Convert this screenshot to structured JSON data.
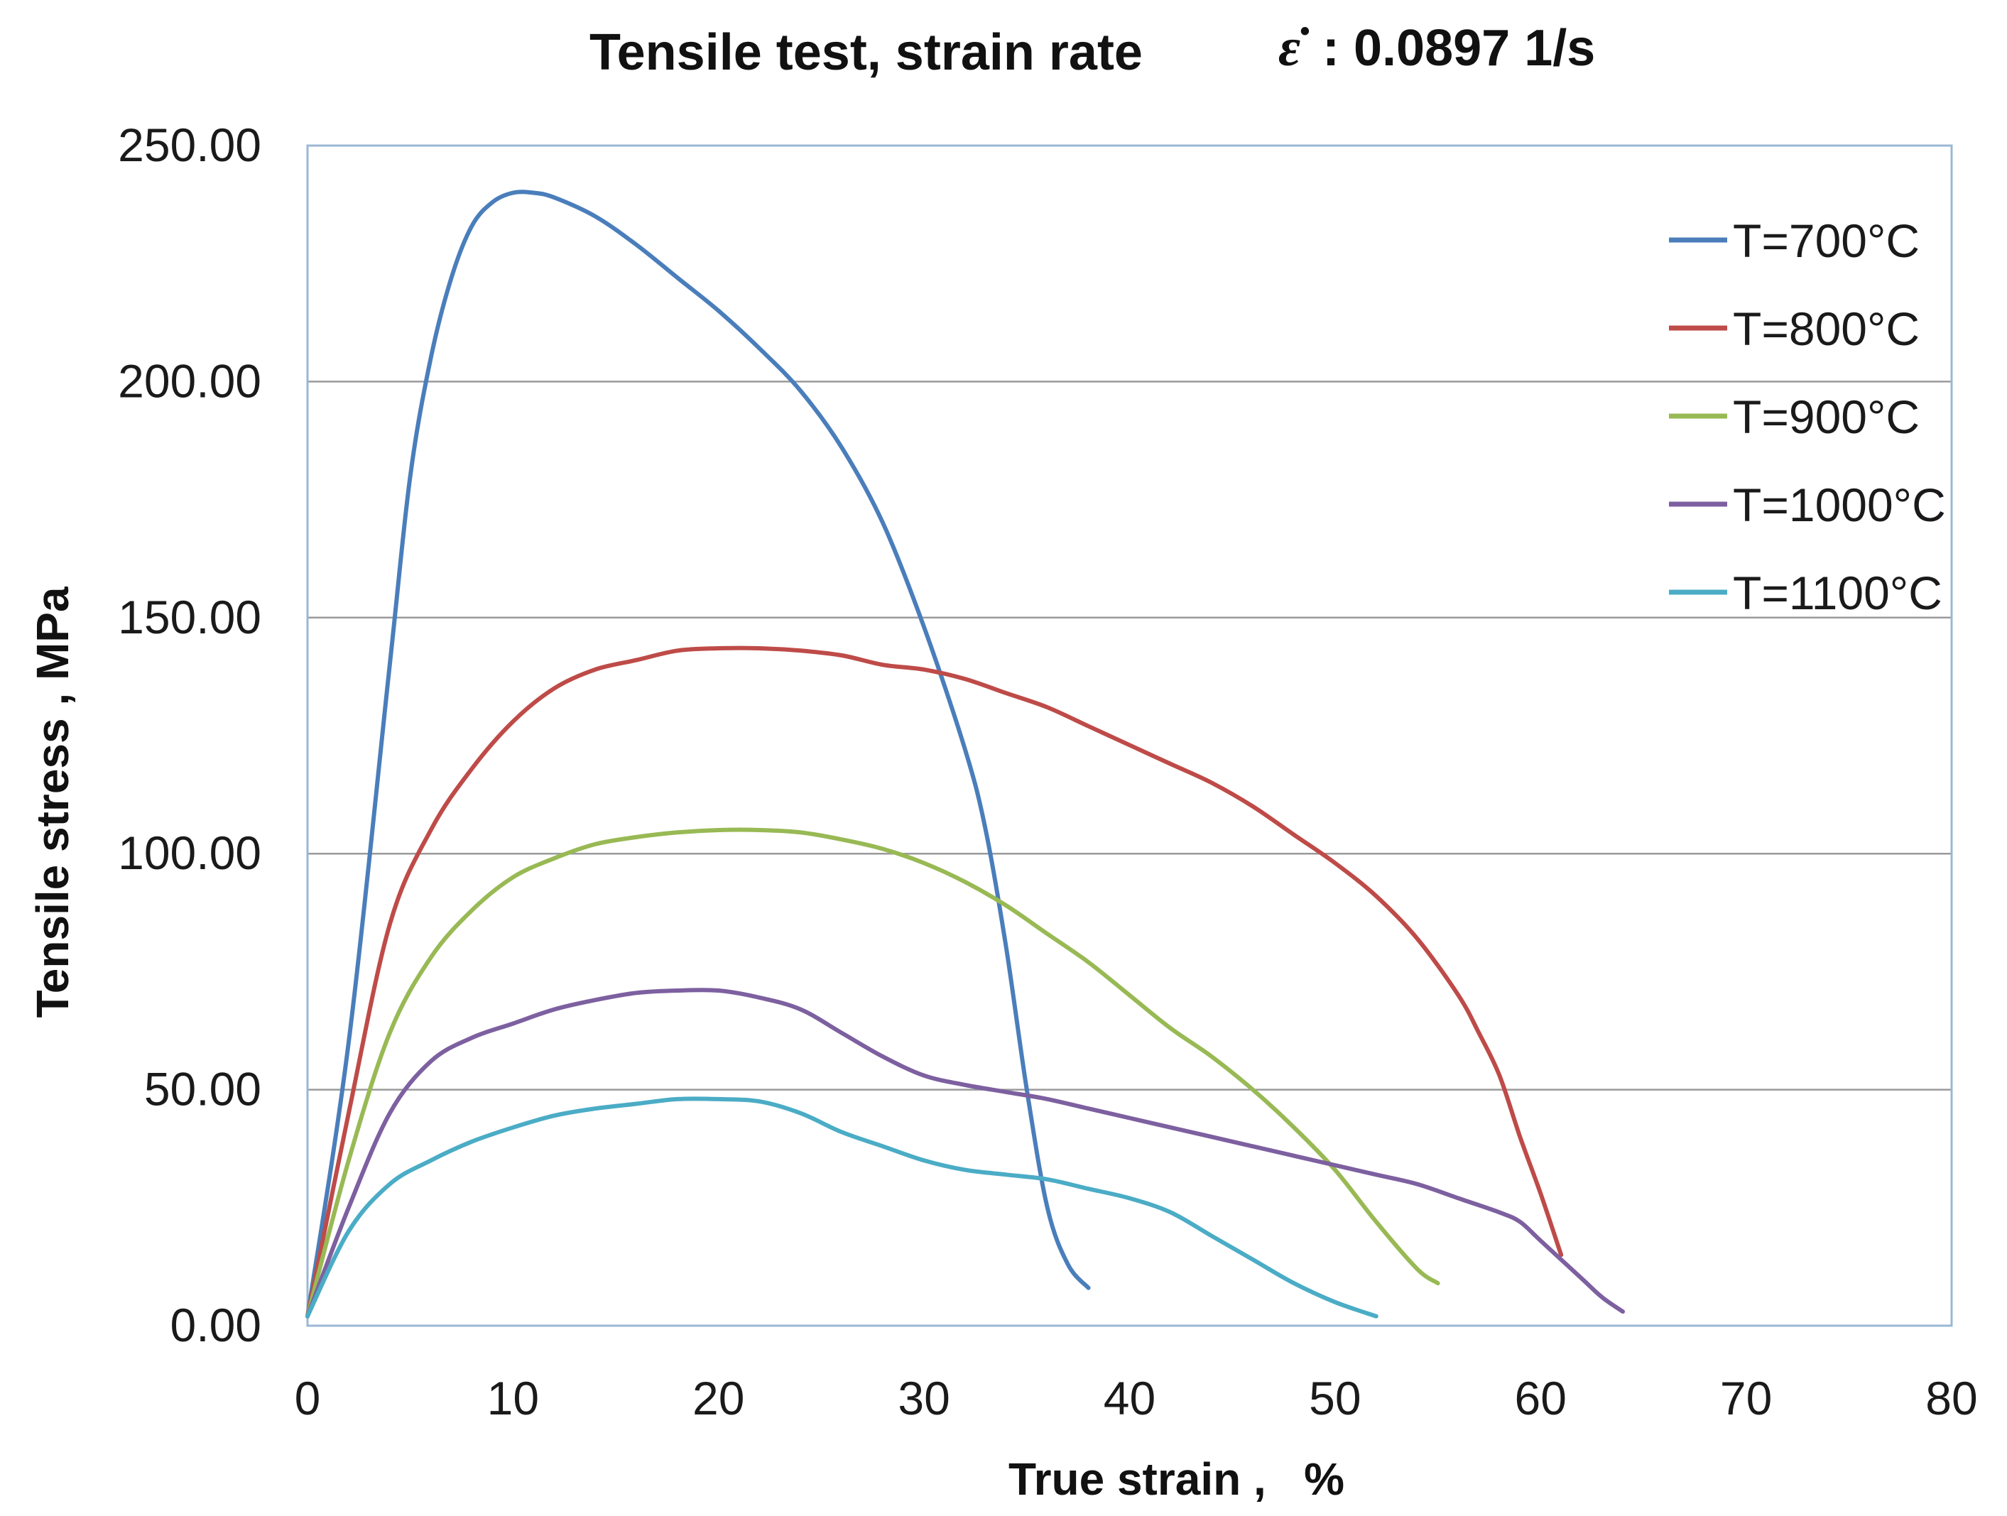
{
  "chart_data": {
    "type": "line",
    "title": "Tensile test, strain rate",
    "title_symbol": "ε̇",
    "title_rate": ": 0.0897 1/s",
    "xlabel": "True strain ,   %",
    "ylabel": "Tensile stress , MPa",
    "xlim": [
      0,
      80
    ],
    "ylim": [
      0,
      250
    ],
    "x_ticks": [
      0,
      10,
      20,
      30,
      40,
      50,
      60,
      70,
      80
    ],
    "x_tick_labels": [
      "0",
      "10",
      "20",
      "30",
      "40",
      "50",
      "60",
      "70",
      "80"
    ],
    "y_ticks": [
      0,
      50,
      100,
      150,
      200,
      250
    ],
    "y_tick_labels": [
      "0.00",
      "50.00",
      "100.00",
      "150.00",
      "200.00",
      "250.00"
    ],
    "grid": "horizontal",
    "legend_position": "top-right",
    "series": [
      {
        "name": "T=700°C",
        "color": "#4a7ebb",
        "points": [
          [
            0,
            2
          ],
          [
            2,
            60
          ],
          [
            4,
            140
          ],
          [
            5,
            180
          ],
          [
            6,
            205
          ],
          [
            7,
            222
          ],
          [
            8,
            233
          ],
          [
            9,
            238
          ],
          [
            10,
            240
          ],
          [
            11,
            240
          ],
          [
            12,
            239
          ],
          [
            14,
            235
          ],
          [
            16,
            229
          ],
          [
            18,
            222
          ],
          [
            20,
            215
          ],
          [
            22,
            207
          ],
          [
            24,
            198
          ],
          [
            26,
            186
          ],
          [
            28,
            170
          ],
          [
            30,
            148
          ],
          [
            32,
            122
          ],
          [
            33,
            105
          ],
          [
            34,
            80
          ],
          [
            35,
            50
          ],
          [
            36,
            25
          ],
          [
            37,
            13
          ],
          [
            38,
            8
          ]
        ]
      },
      {
        "name": "T=800°C",
        "color": "#be4b48",
        "points": [
          [
            0,
            2
          ],
          [
            2,
            45
          ],
          [
            4,
            85
          ],
          [
            6,
            105
          ],
          [
            8,
            118
          ],
          [
            10,
            128
          ],
          [
            12,
            135
          ],
          [
            14,
            139
          ],
          [
            16,
            141
          ],
          [
            18,
            143
          ],
          [
            20,
            143.5
          ],
          [
            22,
            143.5
          ],
          [
            24,
            143
          ],
          [
            26,
            142
          ],
          [
            28,
            140
          ],
          [
            30,
            139
          ],
          [
            32,
            137
          ],
          [
            34,
            134
          ],
          [
            36,
            131
          ],
          [
            38,
            127
          ],
          [
            40,
            123
          ],
          [
            42,
            119
          ],
          [
            44,
            115
          ],
          [
            46,
            110
          ],
          [
            48,
            104
          ],
          [
            50,
            98
          ],
          [
            52,
            91
          ],
          [
            54,
            82
          ],
          [
            56,
            70
          ],
          [
            57,
            62
          ],
          [
            58,
            53
          ],
          [
            59,
            40
          ],
          [
            60,
            28
          ],
          [
            61,
            15
          ]
        ]
      },
      {
        "name": "T=900°C",
        "color": "#98b954",
        "points": [
          [
            0,
            2
          ],
          [
            2,
            35
          ],
          [
            4,
            62
          ],
          [
            6,
            78
          ],
          [
            8,
            88
          ],
          [
            10,
            95
          ],
          [
            12,
            99
          ],
          [
            14,
            102
          ],
          [
            16,
            103.5
          ],
          [
            18,
            104.5
          ],
          [
            20,
            105
          ],
          [
            22,
            105
          ],
          [
            24,
            104.5
          ],
          [
            26,
            103
          ],
          [
            28,
            101
          ],
          [
            30,
            98
          ],
          [
            32,
            94
          ],
          [
            34,
            89
          ],
          [
            36,
            83
          ],
          [
            38,
            77
          ],
          [
            40,
            70
          ],
          [
            42,
            63
          ],
          [
            44,
            57
          ],
          [
            46,
            50
          ],
          [
            48,
            42
          ],
          [
            50,
            33
          ],
          [
            52,
            22
          ],
          [
            54,
            12
          ],
          [
            55,
            9
          ]
        ]
      },
      {
        "name": "T=1000°C",
        "color": "#7d60a0",
        "points": [
          [
            0,
            2
          ],
          [
            2,
            25
          ],
          [
            4,
            45
          ],
          [
            6,
            56
          ],
          [
            8,
            61
          ],
          [
            10,
            64
          ],
          [
            12,
            67
          ],
          [
            14,
            69
          ],
          [
            16,
            70.5
          ],
          [
            18,
            71
          ],
          [
            20,
            71
          ],
          [
            22,
            69.5
          ],
          [
            24,
            67
          ],
          [
            26,
            62
          ],
          [
            28,
            57
          ],
          [
            30,
            53
          ],
          [
            32,
            51
          ],
          [
            34,
            49.5
          ],
          [
            36,
            48
          ],
          [
            38,
            46
          ],
          [
            40,
            44
          ],
          [
            42,
            42
          ],
          [
            44,
            40
          ],
          [
            46,
            38
          ],
          [
            48,
            36
          ],
          [
            50,
            34
          ],
          [
            52,
            32
          ],
          [
            54,
            30
          ],
          [
            56,
            27
          ],
          [
            58,
            24
          ],
          [
            59,
            22
          ],
          [
            60,
            18
          ],
          [
            62,
            10
          ],
          [
            63,
            6
          ],
          [
            64,
            3
          ]
        ]
      },
      {
        "name": "T=1100°C",
        "color": "#4bacc6",
        "points": [
          [
            0,
            2
          ],
          [
            2,
            20
          ],
          [
            4,
            30
          ],
          [
            6,
            35
          ],
          [
            8,
            39
          ],
          [
            10,
            42
          ],
          [
            12,
            44.5
          ],
          [
            14,
            46
          ],
          [
            16,
            47
          ],
          [
            18,
            48
          ],
          [
            20,
            48
          ],
          [
            22,
            47.5
          ],
          [
            24,
            45
          ],
          [
            26,
            41
          ],
          [
            28,
            38
          ],
          [
            30,
            35
          ],
          [
            32,
            33
          ],
          [
            34,
            32
          ],
          [
            36,
            31
          ],
          [
            38,
            29
          ],
          [
            40,
            27
          ],
          [
            42,
            24
          ],
          [
            44,
            19
          ],
          [
            46,
            14
          ],
          [
            48,
            9
          ],
          [
            50,
            5
          ],
          [
            52,
            2
          ]
        ]
      }
    ]
  }
}
